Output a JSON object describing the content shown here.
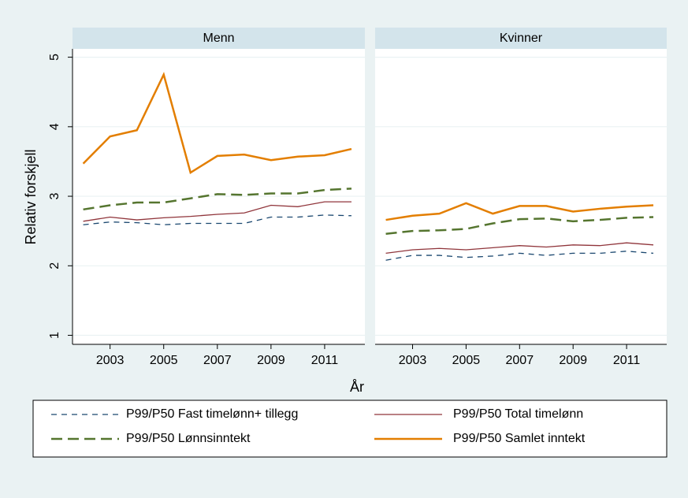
{
  "chart_data": {
    "type": "line",
    "y_label": "Relativ forskjell",
    "x_label": "År",
    "x": [
      2002,
      2003,
      2004,
      2005,
      2006,
      2007,
      2008,
      2009,
      2010,
      2011,
      2012
    ],
    "xlim": [
      2001.6,
      2012.5
    ],
    "xticks": [
      2003,
      2005,
      2007,
      2009,
      2011
    ],
    "ylim": [
      0.87,
      5.12
    ],
    "yticks": [
      1,
      2,
      3,
      4,
      5
    ],
    "grid": true,
    "series": [
      {
        "name": "P99/P50 Fast timelønn+ tillegg",
        "color": "#1a476f",
        "dash": "7,6",
        "width": 1.3
      },
      {
        "name": "P99/P50 Total timelønn",
        "color": "#90353b",
        "dash": "none",
        "width": 1.3
      },
      {
        "name": "P99/P50 Lønnsinntekt",
        "color": "#55752f",
        "dash": "14,7",
        "width": 2.5
      },
      {
        "name": "P99/P50 Samlet inntekt",
        "color": "#e37e00",
        "dash": "none",
        "width": 2.5
      }
    ],
    "panels": [
      {
        "title": "Menn",
        "series": [
          {
            "values": [
              2.59,
              2.63,
              2.62,
              2.59,
              2.61,
              2.61,
              2.61,
              2.7,
              2.7,
              2.73,
              2.72
            ]
          },
          {
            "values": [
              2.64,
              2.7,
              2.66,
              2.69,
              2.71,
              2.74,
              2.76,
              2.87,
              2.85,
              2.92,
              2.92
            ]
          },
          {
            "values": [
              2.81,
              2.87,
              2.91,
              2.91,
              2.97,
              3.03,
              3.02,
              3.04,
              3.04,
              3.09,
              3.11
            ]
          },
          {
            "values": [
              3.47,
              3.86,
              3.95,
              4.75,
              3.34,
              3.58,
              3.6,
              3.52,
              3.57,
              3.59,
              3.68
            ]
          }
        ]
      },
      {
        "title": "Kvinner",
        "series": [
          {
            "values": [
              2.08,
              2.15,
              2.15,
              2.12,
              2.14,
              2.18,
              2.15,
              2.18,
              2.18,
              2.21,
              2.18
            ]
          },
          {
            "values": [
              2.18,
              2.23,
              2.25,
              2.23,
              2.26,
              2.29,
              2.27,
              2.3,
              2.29,
              2.33,
              2.3
            ]
          },
          {
            "values": [
              2.46,
              2.5,
              2.51,
              2.53,
              2.61,
              2.67,
              2.68,
              2.64,
              2.66,
              2.69,
              2.7
            ]
          },
          {
            "values": [
              2.66,
              2.72,
              2.75,
              2.9,
              2.75,
              2.86,
              2.86,
              2.78,
              2.82,
              2.85,
              2.87
            ]
          }
        ]
      }
    ]
  }
}
